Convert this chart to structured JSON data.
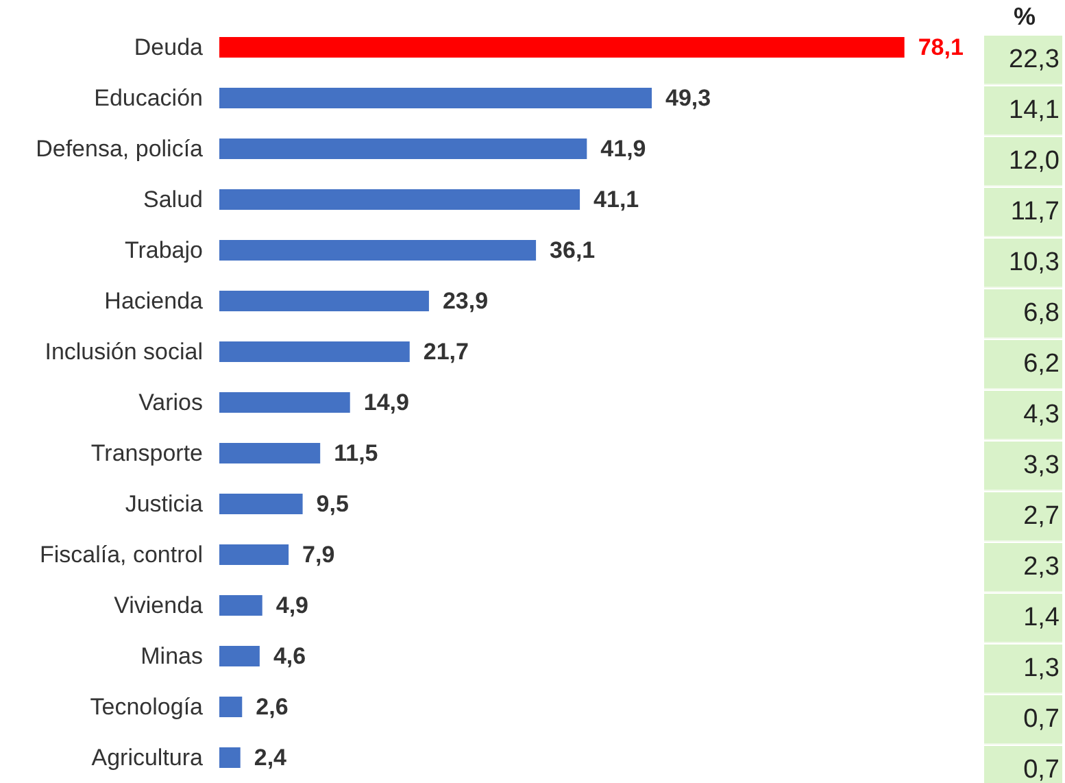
{
  "chart_data": {
    "type": "bar",
    "orientation": "horizontal",
    "categories": [
      "Deuda",
      "Educación",
      "Defensa, policía",
      "Salud",
      "Trabajo",
      "Hacienda",
      "Inclusión social",
      "Varios",
      "Transporte",
      "Justicia",
      "Fiscalía, control",
      "Vivienda",
      "Minas",
      "Tecnología",
      "Agricultura"
    ],
    "values": [
      78.1,
      49.3,
      41.9,
      41.1,
      36.1,
      23.9,
      21.7,
      14.9,
      11.5,
      9.5,
      7.9,
      4.9,
      4.6,
      2.6,
      2.4
    ],
    "value_labels": [
      "78,1",
      "49,3",
      "41,9",
      "41,1",
      "36,1",
      "23,9",
      "21,7",
      "14,9",
      "11,5",
      "9,5",
      "7,9",
      "4,9",
      "4,6",
      "2,6",
      "2,4"
    ],
    "colors": [
      "#ff0000",
      "#4472c4",
      "#4472c4",
      "#4472c4",
      "#4472c4",
      "#4472c4",
      "#4472c4",
      "#4472c4",
      "#4472c4",
      "#4472c4",
      "#4472c4",
      "#4472c4",
      "#4472c4",
      "#4472c4",
      "#4472c4"
    ],
    "annotations": [
      "%",
      "22,3",
      "14,1",
      "12,0",
      "11,7",
      "10,3",
      "6,8",
      "6,2",
      "4,3",
      "3,3",
      "2,7",
      "2,3",
      "1,4",
      "1,3",
      "0,7",
      "0,7"
    ]
  }
}
